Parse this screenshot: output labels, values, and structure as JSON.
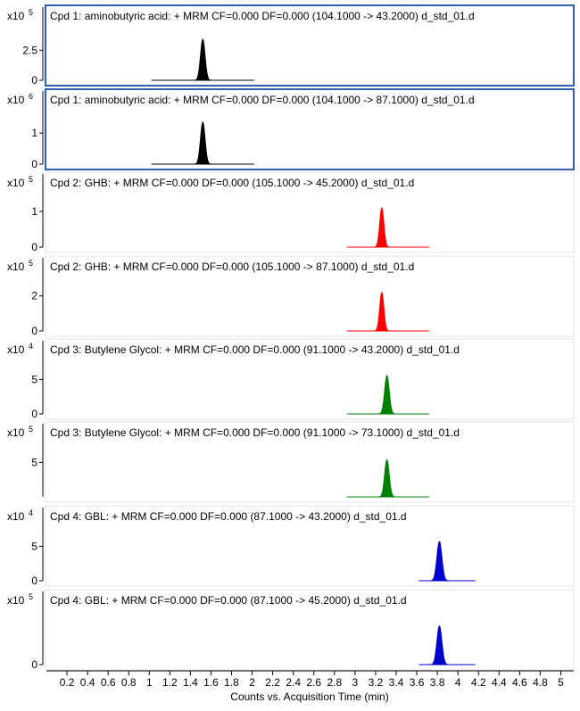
{
  "chart_data": {
    "type": "line",
    "xlabel": "Counts vs. Acquisition Time (min)",
    "xlim": [
      0,
      5.1
    ],
    "xticks": [
      "0.2",
      "0.4",
      "0.6",
      "0.8",
      "1",
      "1.2",
      "1.4",
      "1.6",
      "1.8",
      "2",
      "2.2",
      "2.4",
      "2.6",
      "2.8",
      "3",
      "3.2",
      "3.4",
      "3.6",
      "3.8",
      "4",
      "4.2",
      "4.4",
      "4.6",
      "4.8",
      "5"
    ],
    "panels": [
      {
        "title": "Cpd 1: aminobutyric acid: + MRM CF=0.000 DF=0.000 (104.1000 -> 43.2000) d_std_01.d",
        "multiplier": "x10",
        "exponent": "5",
        "yticks": [
          "0",
          "2.5"
        ],
        "ytick_values": [
          0,
          2.5
        ],
        "ylim": [
          0,
          4
        ],
        "color": "#000000",
        "selected": true,
        "x_start": 1.02,
        "x_end": 2.02,
        "peak_x": 1.52,
        "peak_height": 3.4,
        "peak_width": 0.022
      },
      {
        "title": "Cpd 1: aminobutyric acid: + MRM CF=0.000 DF=0.000 (104.1000 -> 87.1000) d_std_01.d",
        "multiplier": "x10",
        "exponent": "6",
        "yticks": [
          "0",
          "1"
        ],
        "ytick_values": [
          0,
          1
        ],
        "ylim": [
          0,
          1.55
        ],
        "color": "#000000",
        "selected": true,
        "x_start": 1.02,
        "x_end": 2.02,
        "peak_x": 1.52,
        "peak_height": 1.35,
        "peak_width": 0.022
      },
      {
        "title": "Cpd 2: GHB: + MRM CF=0.000 DF=0.000 (105.1000 -> 45.2000) d_std_01.d",
        "multiplier": "x10",
        "exponent": "5",
        "yticks": [
          "0",
          "1"
        ],
        "ytick_values": [
          0,
          1
        ],
        "ylim": [
          0,
          1.35
        ],
        "color": "#ff0000",
        "selected": false,
        "x_start": 2.92,
        "x_end": 3.72,
        "peak_x": 3.26,
        "peak_height": 1.1,
        "peak_width": 0.02
      },
      {
        "title": "Cpd 2: GHB: + MRM CF=0.000 DF=0.000 (105.1000 -> 87.1000) d_std_01.d",
        "multiplier": "x10",
        "exponent": "5",
        "yticks": [
          "0",
          "2"
        ],
        "ytick_values": [
          0,
          2
        ],
        "ylim": [
          0,
          2.75
        ],
        "color": "#ff0000",
        "selected": false,
        "x_start": 2.92,
        "x_end": 3.72,
        "peak_x": 3.26,
        "peak_height": 2.2,
        "peak_width": 0.02
      },
      {
        "title": "Cpd 3: Butylene Glycol: + MRM CF=0.000 DF=0.000 (91.1000 -> 43.2000) d_std_01.d",
        "multiplier": "x10",
        "exponent": "4",
        "yticks": [
          "0",
          "5"
        ],
        "ytick_values": [
          0,
          5
        ],
        "ylim": [
          0,
          7
        ],
        "color": "#008000",
        "selected": false,
        "x_start": 2.92,
        "x_end": 3.72,
        "peak_x": 3.31,
        "peak_height": 5.6,
        "peak_width": 0.022
      },
      {
        "title": "Cpd 3: Butylene Glycol: + MRM CF=0.000 DF=0.000 (91.1000 -> 73.1000) d_std_01.d",
        "multiplier": "x10",
        "exponent": "5",
        "yticks": [
          "5"
        ],
        "ytick_values": [
          5
        ],
        "ylim": [
          0,
          7
        ],
        "color": "#008000",
        "selected": false,
        "x_start": 2.92,
        "x_end": 3.72,
        "peak_x": 3.31,
        "peak_height": 5.4,
        "peak_width": 0.022
      },
      {
        "title": "Cpd 4: GBL: + MRM CF=0.000 DF=0.000 (87.1000 -> 43.2000) d_std_01.d",
        "multiplier": "x10",
        "exponent": "4",
        "yticks": [
          "0",
          "5"
        ],
        "ytick_values": [
          0,
          5
        ],
        "ylim": [
          0,
          7
        ],
        "color": "#0000cc",
        "selected": false,
        "x_start": 3.62,
        "x_end": 4.17,
        "peak_x": 3.82,
        "peak_height": 5.7,
        "peak_width": 0.024
      },
      {
        "title": "Cpd 4: GBL: + MRM CF=0.000 DF=0.000 (87.1000 -> 45.2000) d_std_01.d",
        "multiplier": "x10",
        "exponent": "5",
        "yticks": [
          "0"
        ],
        "ytick_values": [
          0
        ],
        "ylim": [
          0,
          7
        ],
        "color": "#0000cc",
        "selected": false,
        "x_start": 3.62,
        "x_end": 4.17,
        "peak_x": 3.82,
        "peak_height": 5.6,
        "peak_width": 0.024
      }
    ]
  }
}
